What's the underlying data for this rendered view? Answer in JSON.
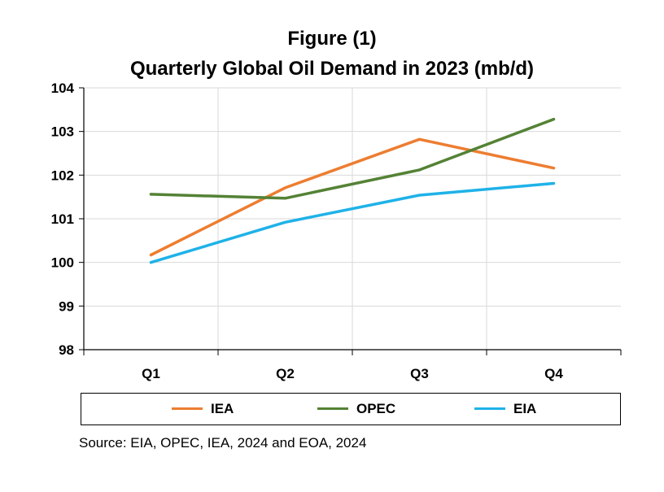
{
  "title_line1": "Figure (1)",
  "title_line2": "Quarterly Global Oil Demand in 2023 (mb/d)",
  "source": "Source: EIA, OPEC, IEA, 2024 and EOA, 2024",
  "chart_data": {
    "type": "line",
    "title": "Quarterly Global Oil Demand in 2023 (mb/d)",
    "xlabel": "",
    "ylabel": "",
    "categories": [
      "Q1",
      "Q2",
      "Q3",
      "Q4"
    ],
    "ylim": [
      98,
      104
    ],
    "yticks": [
      98,
      99,
      100,
      101,
      102,
      103,
      104
    ],
    "grid": true,
    "legend_position": "bottom",
    "series": [
      {
        "name": "IEA",
        "color": "#ED7D31",
        "values": [
          100.17,
          101.71,
          102.82,
          102.16
        ]
      },
      {
        "name": "OPEC",
        "color": "#548235",
        "values": [
          101.56,
          101.47,
          102.12,
          103.28
        ]
      },
      {
        "name": "EIA",
        "color": "#1FB2E8",
        "values": [
          100.0,
          100.92,
          101.54,
          101.81
        ]
      }
    ]
  }
}
